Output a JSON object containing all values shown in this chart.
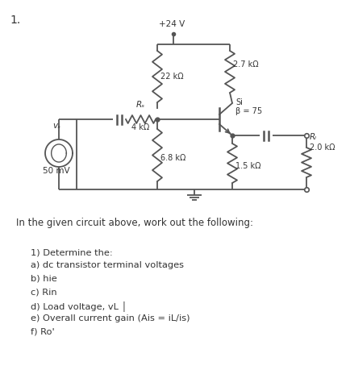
{
  "title_num": "1.",
  "supply_label": "+24 V",
  "r1_label": "22 kΩ",
  "r2_label": "2.7 kΩ",
  "rs_label": "Rₛ",
  "rs_val": "4 kΩ",
  "rb2_label": "6.8 kΩ",
  "re_label": "1.5 kΩ",
  "rl_label": "Rₗ",
  "rl_val": "2.0 kΩ",
  "vs_label": "vₛ",
  "vs_val": "50 mV",
  "transistor_label": "Si",
  "beta_label": "β = 75",
  "question_text": "In the given circuit above, work out the following:",
  "items": [
    "1) Determine the:",
    "a) dc transistor terminal voltages",
    "b) hie",
    "c) Rin",
    "d) Load voltage, vL │",
    "e) Overall current gain (Ais = iL/is)",
    "f) Ro'"
  ],
  "bg_color": "#ffffff",
  "line_color": "#555555",
  "text_color": "#333333"
}
